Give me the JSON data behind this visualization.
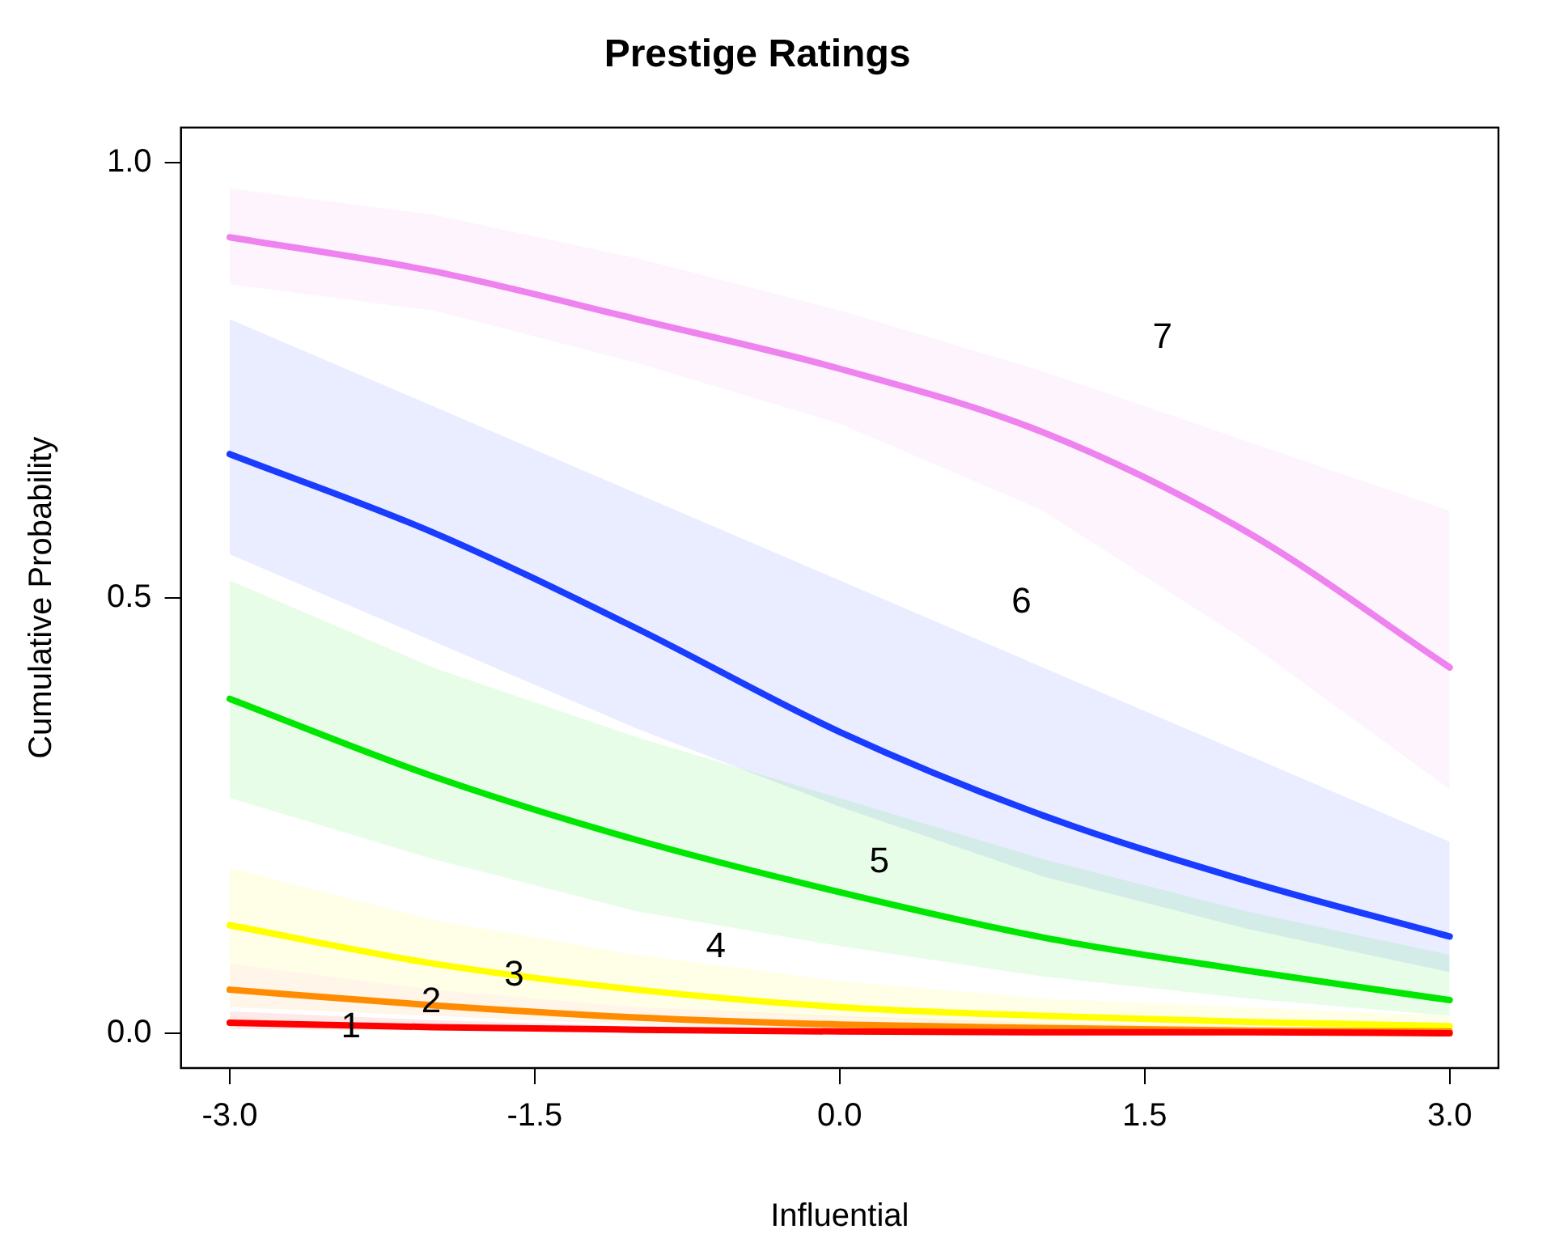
{
  "chart_data": {
    "type": "line",
    "title": "Prestige Ratings",
    "xlabel": "Influential",
    "ylabel": "Cumulative Probability",
    "x": [
      -3,
      -2,
      -1,
      0,
      1,
      2,
      3
    ],
    "xlim": [
      -3.24,
      3.24
    ],
    "xticks": [
      {
        "value": -3,
        "label": "-3.0"
      },
      {
        "value": -1.5,
        "label": "-1.5"
      },
      {
        "value": 0,
        "label": "0.0"
      },
      {
        "value": 1.5,
        "label": "1.5"
      },
      {
        "value": 3,
        "label": "3.0"
      }
    ],
    "ylim": [
      -0.04,
      1.04
    ],
    "yticks": [
      {
        "value": 0,
        "label": "0.0"
      },
      {
        "value": 0.5,
        "label": "0.5"
      },
      {
        "value": 1,
        "label": "1.0"
      }
    ],
    "grid": false,
    "legend": false,
    "marker": "none",
    "line_style": "solid",
    "series": [
      {
        "color": "#ff0000",
        "values": [
          0.012,
          0.007,
          0.004,
          0.002,
          0.001,
          0.001,
          0.0
        ],
        "lower": [
          0.005,
          0.003,
          0.001,
          0,
          0,
          0,
          0
        ],
        "upper": [
          0.025,
          0.015,
          0.008,
          0.005,
          0.003,
          0.002,
          0.001
        ]
      },
      {
        "color": "#ff8c00",
        "values": [
          0.05,
          0.032,
          0.018,
          0.01,
          0.006,
          0.003,
          0.002
        ],
        "lower": [
          0.03,
          0.02,
          0.01,
          0.005,
          0.003,
          0.001,
          0.001
        ],
        "upper": [
          0.08,
          0.05,
          0.03,
          0.02,
          0.012,
          0.008,
          0.005
        ]
      },
      {
        "color": "#ffff00",
        "values": [
          0.124,
          0.08,
          0.05,
          0.03,
          0.02,
          0.013,
          0.008
        ],
        "lower": [
          0.08,
          0.05,
          0.03,
          0.018,
          0.01,
          0.006,
          0.004
        ],
        "upper": [
          0.19,
          0.13,
          0.09,
          0.06,
          0.04,
          0.03,
          0.02
        ]
      },
      {
        "color": "#00e600",
        "values": [
          0.384,
          0.295,
          0.222,
          0.162,
          0.11,
          0.072,
          0.038
        ],
        "lower": [
          0.27,
          0.2,
          0.14,
          0.1,
          0.065,
          0.04,
          0.02
        ],
        "upper": [
          0.52,
          0.42,
          0.34,
          0.27,
          0.2,
          0.14,
          0.09
        ]
      },
      {
        "color": "#1a3cff",
        "values": [
          0.665,
          0.575,
          0.465,
          0.346,
          0.25,
          0.175,
          0.111
        ],
        "lower": [
          0.55,
          0.45,
          0.35,
          0.26,
          0.18,
          0.12,
          0.07
        ],
        "upper": [
          0.82,
          0.72,
          0.62,
          0.52,
          0.42,
          0.32,
          0.22
        ]
      },
      {
        "color": "#ee82ee",
        "values": [
          0.914,
          0.875,
          0.82,
          0.763,
          0.69,
          0.576,
          0.42
        ],
        "lower": [
          0.86,
          0.83,
          0.77,
          0.7,
          0.6,
          0.45,
          0.28
        ],
        "upper": [
          0.97,
          0.94,
          0.89,
          0.83,
          0.76,
          0.68,
          0.6
        ]
      }
    ],
    "annotations": [
      "1",
      "2",
      "3",
      "4",
      "5",
      "6",
      "7"
    ]
  }
}
